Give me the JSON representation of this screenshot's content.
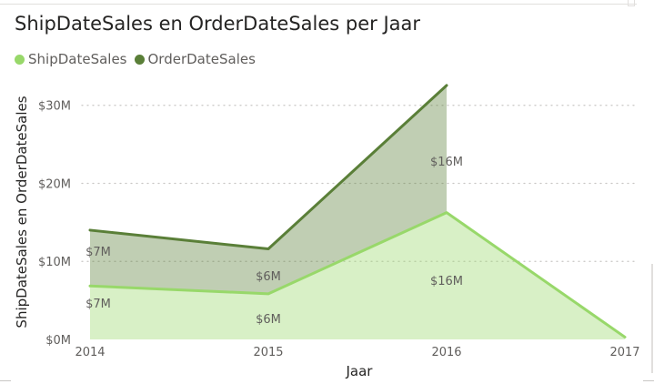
{
  "chart_data": {
    "type": "area",
    "title": "ShipDateSales en OrderDateSales per Jaar",
    "xlabel": "Jaar",
    "ylabel": "ShipDateSales en OrderDateSales",
    "categories": [
      "2014",
      "2015",
      "2016",
      "2017"
    ],
    "ylim": [
      0,
      33000000
    ],
    "y_ticks": [
      {
        "value": 0,
        "label": "$0M"
      },
      {
        "value": 10000000,
        "label": "$10M"
      },
      {
        "value": 20000000,
        "label": "$20M"
      },
      {
        "value": 30000000,
        "label": "$30M"
      }
    ],
    "stacked": true,
    "grid": "horizontal-dotted",
    "legend_position": "top-left",
    "series": [
      {
        "name": "ShipDateSales",
        "color": "#98d86a",
        "values": [
          6850000,
          5850000,
          16250000,
          300000
        ],
        "data_labels": [
          "$7M",
          "$6M",
          "$16M",
          ""
        ]
      },
      {
        "name": "OrderDateSales",
        "color": "#5a7f38",
        "values": [
          7150000,
          5750000,
          16300000,
          null
        ],
        "data_labels": [
          "$7M",
          "$6M",
          "$16M",
          ""
        ]
      }
    ]
  }
}
